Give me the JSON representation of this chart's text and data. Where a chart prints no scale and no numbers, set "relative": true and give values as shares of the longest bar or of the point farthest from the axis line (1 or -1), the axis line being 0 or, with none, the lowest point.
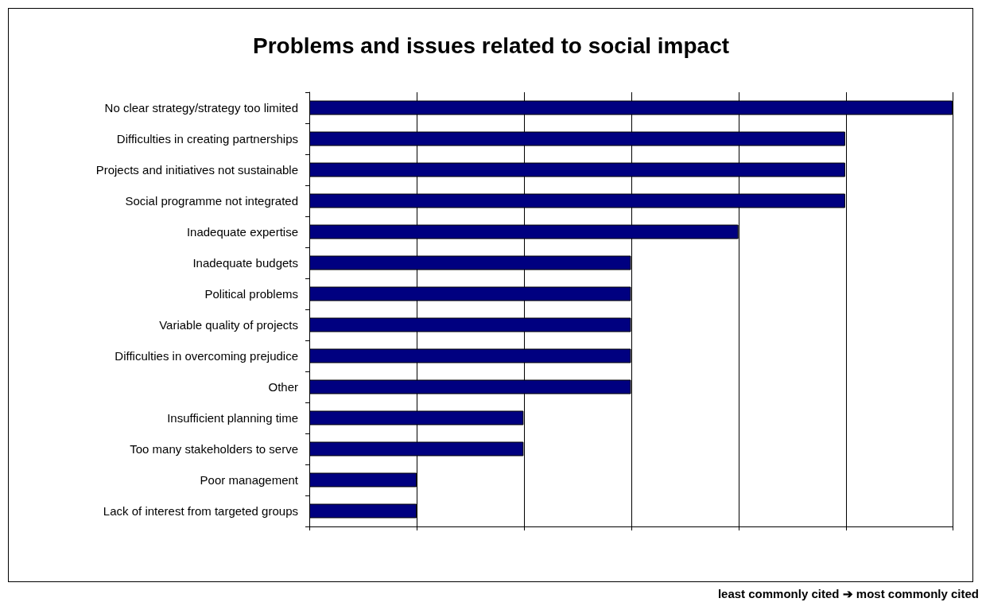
{
  "chart_data": {
    "type": "bar",
    "orientation": "horizontal",
    "relative": true,
    "title": "Problems and issues related to social impact",
    "categories": [
      "No clear strategy/strategy too limited",
      "Difficulties in creating partnerships",
      "Projects and initiatives not sustainable",
      "Social programme not integrated",
      "Inadequate expertise",
      "Inadequate budgets",
      "Political problems",
      "Variable quality of projects",
      "Difficulties in overcoming prejudice",
      "Other",
      "Insufficient planning time",
      "Too many stakeholders to serve",
      "Poor management",
      "Lack of interest from targeted groups"
    ],
    "values": [
      1,
      0.833,
      0.833,
      0.833,
      0.667,
      0.5,
      0.5,
      0.5,
      0.5,
      0.5,
      0.333,
      0.333,
      0.167,
      0.167
    ],
    "color": "#000080",
    "grid": "x",
    "annotations": [
      "least commonly cited ➔ most commonly cited"
    ]
  }
}
